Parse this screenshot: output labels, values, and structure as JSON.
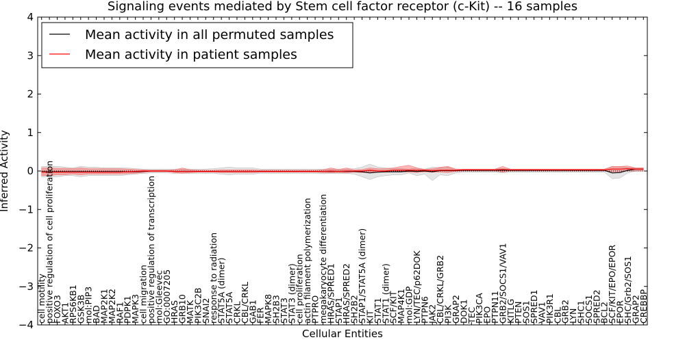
{
  "chart_data": {
    "type": "line",
    "title": "Signaling events mediated by Stem cell factor receptor (c-Kit) -- 16 samples",
    "xlabel": "Cellular Entities",
    "ylabel": "Inferred Activity",
    "ylim": [
      -4,
      4
    ],
    "yticks": [
      -4,
      -3,
      -2,
      -1,
      0,
      1,
      2,
      3,
      4
    ],
    "ytick_labels": [
      "−4",
      "−3",
      "−2",
      "−1",
      "0",
      "1",
      "2",
      "3",
      "4"
    ],
    "legend_position": "top-left",
    "reference_line": 0,
    "categories": [
      "cell motility",
      "positive regulation of cell proliferation",
      "FOXO3",
      "AKT1",
      "RPS6KB1",
      "GSK3B",
      "mol:PIP3",
      "BAD",
      "MAP2K1",
      "MAP2K2",
      "RAF1",
      "PDPK1",
      "MAPK3",
      "cell migration",
      "positive regulation of transcription",
      "mol:Gleevec",
      "GO:0007205",
      "HRAS",
      "GRB10",
      "MATK",
      "PIK3C2B",
      "SNAI2",
      "response to radiation",
      "STAT5A (dimer)",
      "STAT5A",
      "CRKL",
      "CBL/CRKL",
      "GAB1",
      "FER",
      "MAPK8",
      "SH2B3",
      "STAT3",
      "STAT3 (dimer)",
      "cell proliferation",
      "actin filament polymerization",
      "PTPRO",
      "megakaryocyte differentiation",
      "HRAS/SPRED1",
      "STAP1",
      "HRAS/SPRED2",
      "SH2B2",
      "STAP1/STAT5A (dimer)",
      "KIT",
      "STAT1",
      "STAT1 (dimer)",
      "SCF/KIT",
      "MAP4K1",
      "mol:GDP",
      "LYN/TEC/p62DOK",
      "PTPN6",
      "JAK2",
      "CBL/CRKL/GRB2",
      "PI3K",
      "GRAP2",
      "DOK1",
      "TEC",
      "PIK3CA",
      "EPO",
      "PTPN11",
      "GRB2/SOCS1/VAV1",
      "KITLG",
      "PTEN",
      "SOS1",
      "SPRED1",
      "VAV1",
      "PIK3R1",
      "CBL",
      "GRB2",
      "LYN",
      "SHC1",
      "SOCS1",
      "SPRED2",
      "BCL2",
      "SCF/KIT/EPO/EPOR",
      "EPOR",
      "SHC/Grb2/SOS1",
      "GRAP2",
      "CREBBP"
    ],
    "series": [
      {
        "name": "Mean activity in all permuted samples",
        "color": "#000000",
        "values": [
          -0.02,
          -0.02,
          -0.02,
          -0.02,
          -0.02,
          -0.02,
          -0.02,
          -0.02,
          -0.02,
          -0.02,
          -0.02,
          -0.02,
          -0.02,
          -0.01,
          0.0,
          0.0,
          0.0,
          -0.01,
          -0.01,
          -0.01,
          -0.01,
          -0.01,
          -0.01,
          -0.01,
          -0.01,
          -0.01,
          -0.01,
          -0.01,
          -0.01,
          -0.01,
          -0.01,
          -0.01,
          -0.01,
          -0.01,
          -0.01,
          -0.01,
          -0.01,
          -0.01,
          -0.01,
          -0.01,
          -0.01,
          -0.02,
          -0.05,
          -0.03,
          -0.02,
          -0.02,
          -0.02,
          0.0,
          -0.01,
          0.0,
          -0.02,
          0.01,
          0.01,
          0.01,
          0.02,
          0.02,
          0.02,
          0.02,
          0.02,
          0.02,
          0.02,
          0.02,
          0.02,
          0.02,
          0.02,
          0.02,
          0.02,
          0.02,
          0.02,
          0.02,
          0.02,
          0.02,
          0.02,
          -0.05,
          -0.04,
          0.02,
          0.05,
          0.05
        ],
        "band_low": [
          -0.15,
          -0.15,
          -0.15,
          -0.12,
          -0.12,
          -0.15,
          -0.12,
          -0.12,
          -0.12,
          -0.12,
          -0.12,
          -0.1,
          -0.08,
          -0.06,
          -0.05,
          -0.05,
          -0.05,
          -0.06,
          -0.06,
          -0.06,
          -0.06,
          -0.06,
          -0.06,
          -0.08,
          -0.1,
          -0.08,
          -0.08,
          -0.08,
          -0.06,
          -0.06,
          -0.06,
          -0.06,
          -0.06,
          -0.06,
          -0.06,
          -0.06,
          -0.06,
          -0.06,
          -0.06,
          -0.06,
          -0.08,
          -0.15,
          -0.22,
          -0.15,
          -0.12,
          -0.1,
          -0.1,
          -0.05,
          -0.12,
          -0.08,
          -0.25,
          -0.1,
          -0.12,
          -0.05,
          -0.03,
          -0.03,
          -0.03,
          -0.03,
          -0.03,
          -0.05,
          -0.03,
          -0.03,
          -0.03,
          -0.03,
          -0.03,
          -0.03,
          -0.03,
          -0.03,
          -0.03,
          -0.03,
          -0.03,
          -0.03,
          -0.03,
          -0.2,
          -0.18,
          -0.05,
          0.0,
          0.0
        ],
        "band_high": [
          0.12,
          0.12,
          0.12,
          0.1,
          0.08,
          0.12,
          0.1,
          0.1,
          0.08,
          0.08,
          0.08,
          0.08,
          0.06,
          0.05,
          0.05,
          0.05,
          0.05,
          0.05,
          0.05,
          0.05,
          0.05,
          0.05,
          0.06,
          0.08,
          0.1,
          0.08,
          0.08,
          0.08,
          0.05,
          0.05,
          0.05,
          0.05,
          0.05,
          0.05,
          0.05,
          0.05,
          0.05,
          0.05,
          0.05,
          0.05,
          0.06,
          0.1,
          0.18,
          0.1,
          0.08,
          0.06,
          0.06,
          0.05,
          0.08,
          0.05,
          0.1,
          0.08,
          0.1,
          0.05,
          0.05,
          0.05,
          0.05,
          0.05,
          0.05,
          0.06,
          0.05,
          0.05,
          0.05,
          0.05,
          0.05,
          0.05,
          0.05,
          0.05,
          0.05,
          0.05,
          0.05,
          0.05,
          0.05,
          0.12,
          0.12,
          0.1,
          0.08,
          0.08
        ]
      },
      {
        "name": "Mean activity in patient samples",
        "color": "#ff0000",
        "values": [
          -0.03,
          -0.03,
          -0.03,
          -0.03,
          -0.03,
          -0.03,
          -0.03,
          -0.03,
          -0.03,
          -0.03,
          -0.03,
          -0.02,
          -0.01,
          0.0,
          0.0,
          0.0,
          0.0,
          -0.01,
          -0.01,
          -0.01,
          -0.01,
          -0.01,
          -0.01,
          -0.01,
          -0.01,
          -0.01,
          -0.01,
          -0.01,
          -0.01,
          -0.01,
          -0.01,
          -0.01,
          -0.01,
          -0.01,
          -0.01,
          -0.01,
          -0.01,
          0.0,
          -0.01,
          0.0,
          0.0,
          0.0,
          0.02,
          0.0,
          0.0,
          0.02,
          0.02,
          0.02,
          0.02,
          0.02,
          0.01,
          0.02,
          0.02,
          0.02,
          0.03,
          0.03,
          0.03,
          0.03,
          0.03,
          0.04,
          0.03,
          0.03,
          0.03,
          0.03,
          0.03,
          0.03,
          0.03,
          0.03,
          0.03,
          0.03,
          0.03,
          0.03,
          0.03,
          0.05,
          0.05,
          0.06,
          0.05,
          0.05
        ],
        "band_low": [
          -0.12,
          -0.12,
          -0.1,
          -0.1,
          -0.08,
          -0.1,
          -0.08,
          -0.08,
          -0.08,
          -0.08,
          -0.08,
          -0.07,
          -0.06,
          -0.04,
          -0.02,
          -0.02,
          -0.02,
          -0.04,
          -0.06,
          -0.04,
          -0.03,
          -0.03,
          -0.03,
          -0.04,
          -0.04,
          -0.04,
          -0.04,
          -0.04,
          -0.03,
          -0.03,
          -0.03,
          -0.03,
          -0.03,
          -0.03,
          -0.03,
          -0.03,
          -0.04,
          -0.05,
          -0.04,
          -0.05,
          -0.03,
          -0.04,
          -0.03,
          -0.03,
          -0.03,
          -0.02,
          -0.02,
          -0.03,
          -0.04,
          -0.02,
          -0.03,
          -0.03,
          -0.04,
          -0.01,
          0.0,
          0.0,
          0.0,
          0.0,
          0.0,
          -0.03,
          0.0,
          0.0,
          0.0,
          0.0,
          0.0,
          0.0,
          0.0,
          0.0,
          0.0,
          0.0,
          0.0,
          0.0,
          0.0,
          -0.02,
          -0.02,
          0.0,
          0.0,
          0.0
        ],
        "band_high": [
          0.08,
          0.08,
          0.07,
          0.07,
          0.06,
          0.08,
          0.06,
          0.06,
          0.06,
          0.06,
          0.06,
          0.05,
          0.04,
          0.03,
          0.02,
          0.02,
          0.02,
          0.03,
          0.08,
          0.03,
          0.02,
          0.02,
          0.02,
          0.03,
          0.03,
          0.03,
          0.03,
          0.03,
          0.02,
          0.02,
          0.02,
          0.02,
          0.02,
          0.02,
          0.02,
          0.02,
          0.03,
          0.08,
          0.04,
          0.08,
          0.03,
          0.04,
          0.08,
          0.06,
          0.06,
          0.08,
          0.12,
          0.15,
          0.08,
          0.04,
          0.06,
          0.1,
          0.12,
          0.05,
          0.05,
          0.05,
          0.05,
          0.05,
          0.05,
          0.12,
          0.05,
          0.05,
          0.05,
          0.05,
          0.05,
          0.05,
          0.05,
          0.05,
          0.05,
          0.05,
          0.05,
          0.05,
          0.05,
          0.12,
          0.12,
          0.13,
          0.08,
          0.08
        ]
      }
    ]
  }
}
